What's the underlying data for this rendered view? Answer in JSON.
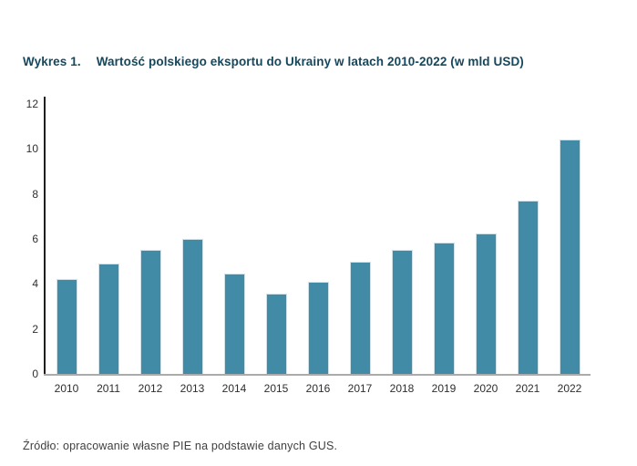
{
  "figure": {
    "label": "Wykres 1.",
    "title": "Wartość polskiego eksportu do Ukrainy w latach 2010-2022 (w mld USD)",
    "source": "Źródło: opracowanie własne PIE na podstawie danych GUS."
  },
  "colors": {
    "title_navy": "#15475d",
    "bar_fill": "#428ba6",
    "bar_edge": "#cfe2ea",
    "y_axis_line": "#1f1f1f",
    "x_axis_line": "#ababab",
    "tick_text": "#2e2e2e",
    "source_text": "#3f3f3f",
    "background": "#ffffff"
  },
  "chart_data": {
    "type": "bar",
    "categories": [
      "2010",
      "2011",
      "2012",
      "2013",
      "2014",
      "2015",
      "2016",
      "2017",
      "2018",
      "2019",
      "2020",
      "2021",
      "2022"
    ],
    "values": [
      4.2,
      4.9,
      5.5,
      6.0,
      4.45,
      3.55,
      4.1,
      5.0,
      5.5,
      5.85,
      6.25,
      7.7,
      10.4
    ],
    "title": "Wartość polskiego eksportu do Ukrainy w latach 2010-2022 (w mld USD)",
    "xlabel": "",
    "ylabel": "",
    "ylim": [
      0,
      12
    ],
    "yticks": [
      0,
      2,
      4,
      6,
      8,
      10,
      12
    ],
    "grid": false,
    "legend": false,
    "bar_color": "#428ba6"
  }
}
